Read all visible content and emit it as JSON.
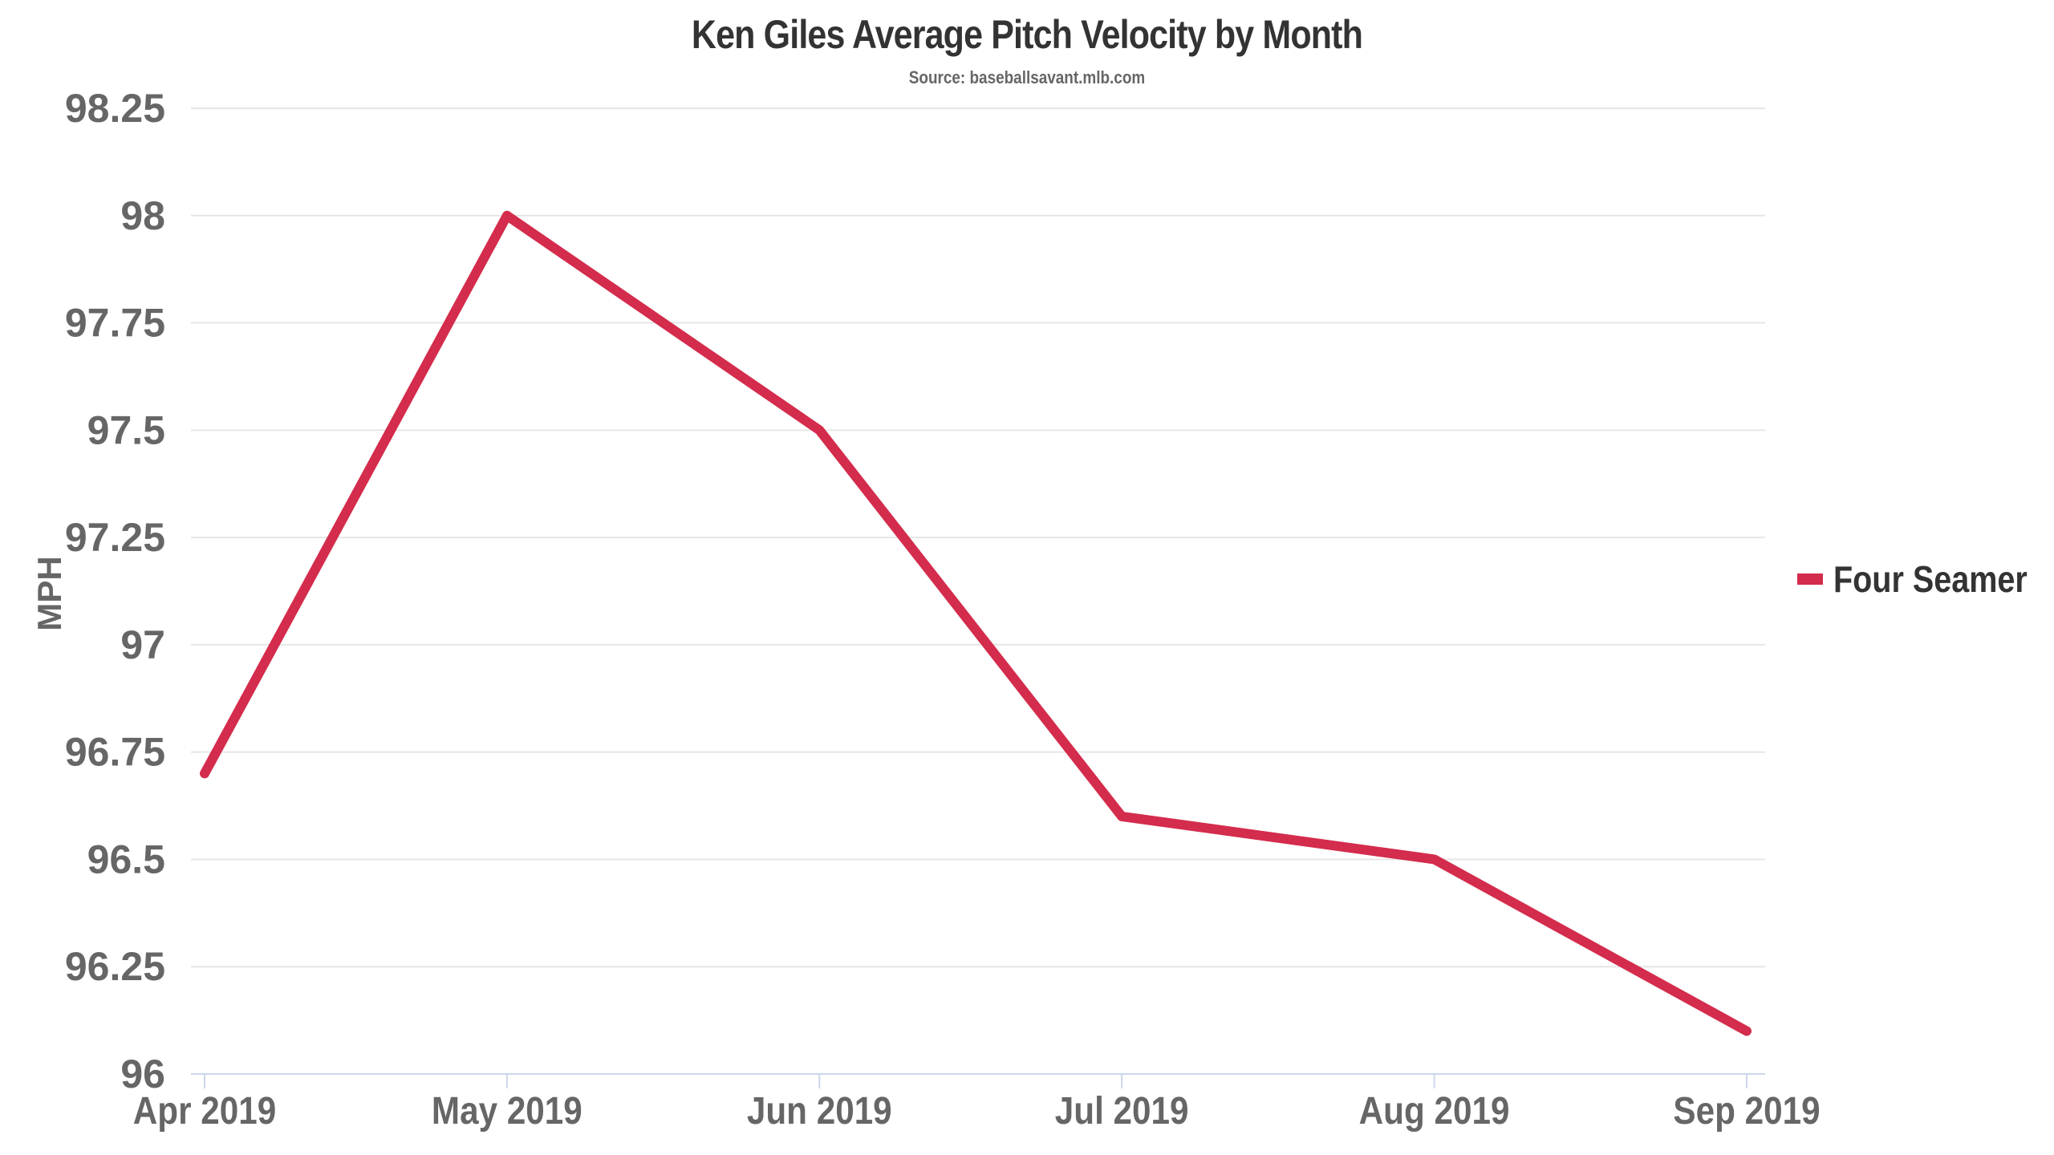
{
  "chart_data": {
    "type": "line",
    "title": "Ken Giles Average Pitch Velocity by Month",
    "subtitle": "Source: baseballsavant.mlb.com",
    "xlabel": "",
    "ylabel": "MPH",
    "x": [
      "2019-04-01",
      "2019-05-01",
      "2019-06-01",
      "2019-07-01",
      "2019-08-01",
      "2019-09-01"
    ],
    "x_tick_labels": [
      "Apr 2019",
      "May 2019",
      "Jun 2019",
      "Jul 2019",
      "Aug 2019",
      "Sep 2019"
    ],
    "y_ticks": [
      96,
      96.25,
      96.5,
      96.75,
      97,
      97.25,
      97.5,
      97.75,
      98,
      98.25
    ],
    "y_tick_labels": [
      "96",
      "96.25",
      "96.5",
      "96.75",
      "97",
      "97.25",
      "97.5",
      "97.75",
      "98",
      "98.25"
    ],
    "ylim": [
      96,
      98.25
    ],
    "grid": "horizontal",
    "legend_position": "right",
    "series": [
      {
        "name": "Four Seamer",
        "color": "#d42c4c",
        "values": [
          96.7,
          98.0,
          97.5,
          96.6,
          96.5,
          96.1
        ]
      }
    ]
  }
}
